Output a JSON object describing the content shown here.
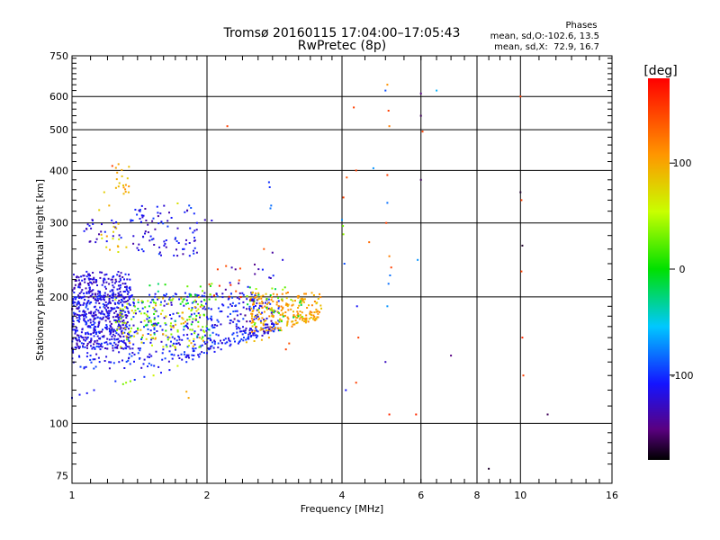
{
  "chart_data": {
    "type": "scatter",
    "title": "Tromsø 20160115 17:04:00–17:05:43",
    "subtitle": "RwPretec (8p)",
    "xlabel": "Frequency [MHz]",
    "ylabel": "Stationary phase Virtual Height [km]",
    "x_scale": "log",
    "y_scale": "log",
    "xlim": [
      1,
      16
    ],
    "ylim": [
      72,
      750
    ],
    "x_ticks": [
      1,
      2,
      4,
      6,
      8,
      10,
      16
    ],
    "y_ticks": [
      75,
      100,
      200,
      300,
      400,
      500,
      600,
      750
    ],
    "grid": true,
    "stats": {
      "heading": "Phases",
      "line1": "mean, sd,O:-102.6, 13.5",
      "line2": "mean, sd,X:  72.9, 16.7"
    },
    "colorbar": {
      "label": "[deg]",
      "min": -180,
      "max": 180,
      "ticks": [
        100,
        0,
        -100
      ]
    },
    "clusters": [
      {
        "x": [
          1.0,
          1.35
        ],
        "y": [
          150,
          230
        ],
        "phase": [
          -140,
          -100
        ],
        "n": 520
      },
      {
        "x": [
          1.0,
          2.9
        ],
        "y": [
          135,
          205
        ],
        "phase": [
          -130,
          -90
        ],
        "n": 600
      },
      {
        "x": [
          1.25,
          2.0
        ],
        "y": [
          150,
          200
        ],
        "phase": [
          20,
          110
        ],
        "n": 130
      },
      {
        "x": [
          1.4,
          2.1
        ],
        "y": [
          160,
          215
        ],
        "phase": [
          -30,
          40
        ],
        "n": 60
      },
      {
        "x": [
          1.35,
          1.9
        ],
        "y": [
          250,
          330
        ],
        "phase": [
          -140,
          -90
        ],
        "n": 90
      },
      {
        "x": [
          1.05,
          1.3
        ],
        "y": [
          270,
          310
        ],
        "phase": [
          -140,
          -100
        ],
        "n": 25
      },
      {
        "x": [
          1.15,
          1.35
        ],
        "y": [
          255,
          300
        ],
        "phase": [
          60,
          110
        ],
        "n": 15
      },
      {
        "x": [
          1.25,
          1.35
        ],
        "y": [
          350,
          412
        ],
        "phase": [
          80,
          110
        ],
        "n": 18
      },
      {
        "x": [
          2.5,
          3.6
        ],
        "y": [
          165,
          205
        ],
        "phase": [
          80,
          120
        ],
        "n": 220
      },
      {
        "x": [
          2.4,
          3.3
        ],
        "y": [
          165,
          215
        ],
        "phase": [
          -20,
          50
        ],
        "n": 35
      },
      {
        "x": [
          2.2,
          2.9
        ],
        "y": [
          165,
          240
        ],
        "phase": [
          -150,
          -100
        ],
        "n": 30
      },
      {
        "x": [
          2.0,
          2.5
        ],
        "y": [
          195,
          240
        ],
        "phase": [
          130,
          165
        ],
        "n": 12
      }
    ],
    "points": [
      {
        "x": 1.0,
        "y": 115,
        "phase": -110
      },
      {
        "x": 1.04,
        "y": 117,
        "phase": -110
      },
      {
        "x": 1.08,
        "y": 118,
        "phase": -110
      },
      {
        "x": 1.12,
        "y": 120,
        "phase": -110
      },
      {
        "x": 1.1,
        "y": 145,
        "phase": -100
      },
      {
        "x": 1.25,
        "y": 126,
        "phase": -100
      },
      {
        "x": 1.3,
        "y": 124,
        "phase": 30
      },
      {
        "x": 1.32,
        "y": 125,
        "phase": 40
      },
      {
        "x": 1.35,
        "y": 126,
        "phase": 35
      },
      {
        "x": 1.38,
        "y": 127,
        "phase": -100
      },
      {
        "x": 1.45,
        "y": 129,
        "phase": -100
      },
      {
        "x": 1.52,
        "y": 130,
        "phase": 60
      },
      {
        "x": 1.58,
        "y": 132,
        "phase": -110
      },
      {
        "x": 1.65,
        "y": 134,
        "phase": -110
      },
      {
        "x": 1.72,
        "y": 137,
        "phase": 60
      },
      {
        "x": 1.8,
        "y": 140,
        "phase": -100
      },
      {
        "x": 1.86,
        "y": 142,
        "phase": -100
      },
      {
        "x": 1.92,
        "y": 144,
        "phase": -110
      },
      {
        "x": 2.0,
        "y": 147,
        "phase": -110
      },
      {
        "x": 2.08,
        "y": 148,
        "phase": -110
      },
      {
        "x": 2.15,
        "y": 150,
        "phase": -110
      },
      {
        "x": 2.25,
        "y": 153,
        "phase": -110
      },
      {
        "x": 2.35,
        "y": 155,
        "phase": -110
      },
      {
        "x": 2.45,
        "y": 156,
        "phase": 90
      },
      {
        "x": 2.55,
        "y": 157,
        "phase": 90
      },
      {
        "x": 2.65,
        "y": 158,
        "phase": 95
      },
      {
        "x": 2.75,
        "y": 160,
        "phase": 100
      },
      {
        "x": 1.8,
        "y": 119,
        "phase": 100
      },
      {
        "x": 1.82,
        "y": 115,
        "phase": 100
      },
      {
        "x": 1.27,
        "y": 414,
        "phase": 100
      },
      {
        "x": 1.23,
        "y": 410,
        "phase": 150
      },
      {
        "x": 1.18,
        "y": 355,
        "phase": 80
      },
      {
        "x": 1.15,
        "y": 322,
        "phase": 80
      },
      {
        "x": 1.21,
        "y": 330,
        "phase": 95
      },
      {
        "x": 1.72,
        "y": 334,
        "phase": 70
      },
      {
        "x": 1.9,
        "y": 300,
        "phase": -110
      },
      {
        "x": 1.98,
        "y": 305,
        "phase": -130
      },
      {
        "x": 2.05,
        "y": 304,
        "phase": -120
      },
      {
        "x": 2.22,
        "y": 510,
        "phase": 150
      },
      {
        "x": 2.05,
        "y": 215,
        "phase": 40
      },
      {
        "x": 2.75,
        "y": 375,
        "phase": -100
      },
      {
        "x": 2.76,
        "y": 365,
        "phase": -100
      },
      {
        "x": 2.78,
        "y": 330,
        "phase": -80
      },
      {
        "x": 2.77,
        "y": 325,
        "phase": -80
      },
      {
        "x": 2.8,
        "y": 255,
        "phase": -140
      },
      {
        "x": 2.68,
        "y": 260,
        "phase": 140
      },
      {
        "x": 2.95,
        "y": 245,
        "phase": -120
      },
      {
        "x": 3.0,
        "y": 150,
        "phase": 150
      },
      {
        "x": 3.05,
        "y": 155,
        "phase": 140
      },
      {
        "x": 4.0,
        "y": 305,
        "phase": -70
      },
      {
        "x": 4.02,
        "y": 295,
        "phase": 30
      },
      {
        "x": 4.03,
        "y": 282,
        "phase": 40
      },
      {
        "x": 4.05,
        "y": 240,
        "phase": -90
      },
      {
        "x": 4.08,
        "y": 120,
        "phase": -110
      },
      {
        "x": 4.03,
        "y": 345,
        "phase": 150
      },
      {
        "x": 4.1,
        "y": 385,
        "phase": 140
      },
      {
        "x": 4.25,
        "y": 565,
        "phase": 150
      },
      {
        "x": 4.3,
        "y": 400,
        "phase": 150
      },
      {
        "x": 4.32,
        "y": 190,
        "phase": -110
      },
      {
        "x": 4.35,
        "y": 160,
        "phase": 150
      },
      {
        "x": 4.3,
        "y": 125,
        "phase": 150
      },
      {
        "x": 4.6,
        "y": 270,
        "phase": 130
      },
      {
        "x": 4.7,
        "y": 405,
        "phase": -70
      },
      {
        "x": 5.0,
        "y": 620,
        "phase": -90
      },
      {
        "x": 5.05,
        "y": 640,
        "phase": 110
      },
      {
        "x": 5.08,
        "y": 555,
        "phase": 150
      },
      {
        "x": 5.1,
        "y": 510,
        "phase": 120
      },
      {
        "x": 5.05,
        "y": 390,
        "phase": 150
      },
      {
        "x": 5.05,
        "y": 335,
        "phase": -80
      },
      {
        "x": 5.02,
        "y": 300,
        "phase": 150
      },
      {
        "x": 5.1,
        "y": 250,
        "phase": 120
      },
      {
        "x": 5.15,
        "y": 235,
        "phase": 150
      },
      {
        "x": 5.12,
        "y": 225,
        "phase": -80
      },
      {
        "x": 5.08,
        "y": 215,
        "phase": -80
      },
      {
        "x": 5.05,
        "y": 190,
        "phase": -70
      },
      {
        "x": 5.0,
        "y": 140,
        "phase": -130
      },
      {
        "x": 5.1,
        "y": 105,
        "phase": 160
      },
      {
        "x": 5.85,
        "y": 105,
        "phase": 160
      },
      {
        "x": 5.9,
        "y": 245,
        "phase": -70
      },
      {
        "x": 6.0,
        "y": 610,
        "phase": -150
      },
      {
        "x": 6.0,
        "y": 540,
        "phase": -160
      },
      {
        "x": 6.05,
        "y": 495,
        "phase": 150
      },
      {
        "x": 6.0,
        "y": 380,
        "phase": -160
      },
      {
        "x": 6.5,
        "y": 620,
        "phase": -60
      },
      {
        "x": 7.0,
        "y": 145,
        "phase": -150
      },
      {
        "x": 8.5,
        "y": 78,
        "phase": -170
      },
      {
        "x": 10.0,
        "y": 600,
        "phase": 150
      },
      {
        "x": 10.0,
        "y": 355,
        "phase": -170
      },
      {
        "x": 10.05,
        "y": 340,
        "phase": 150
      },
      {
        "x": 10.1,
        "y": 265,
        "phase": -170
      },
      {
        "x": 10.05,
        "y": 230,
        "phase": 150
      },
      {
        "x": 10.1,
        "y": 160,
        "phase": 160
      },
      {
        "x": 10.15,
        "y": 130,
        "phase": 150
      },
      {
        "x": 11.5,
        "y": 105,
        "phase": -160
      }
    ]
  }
}
